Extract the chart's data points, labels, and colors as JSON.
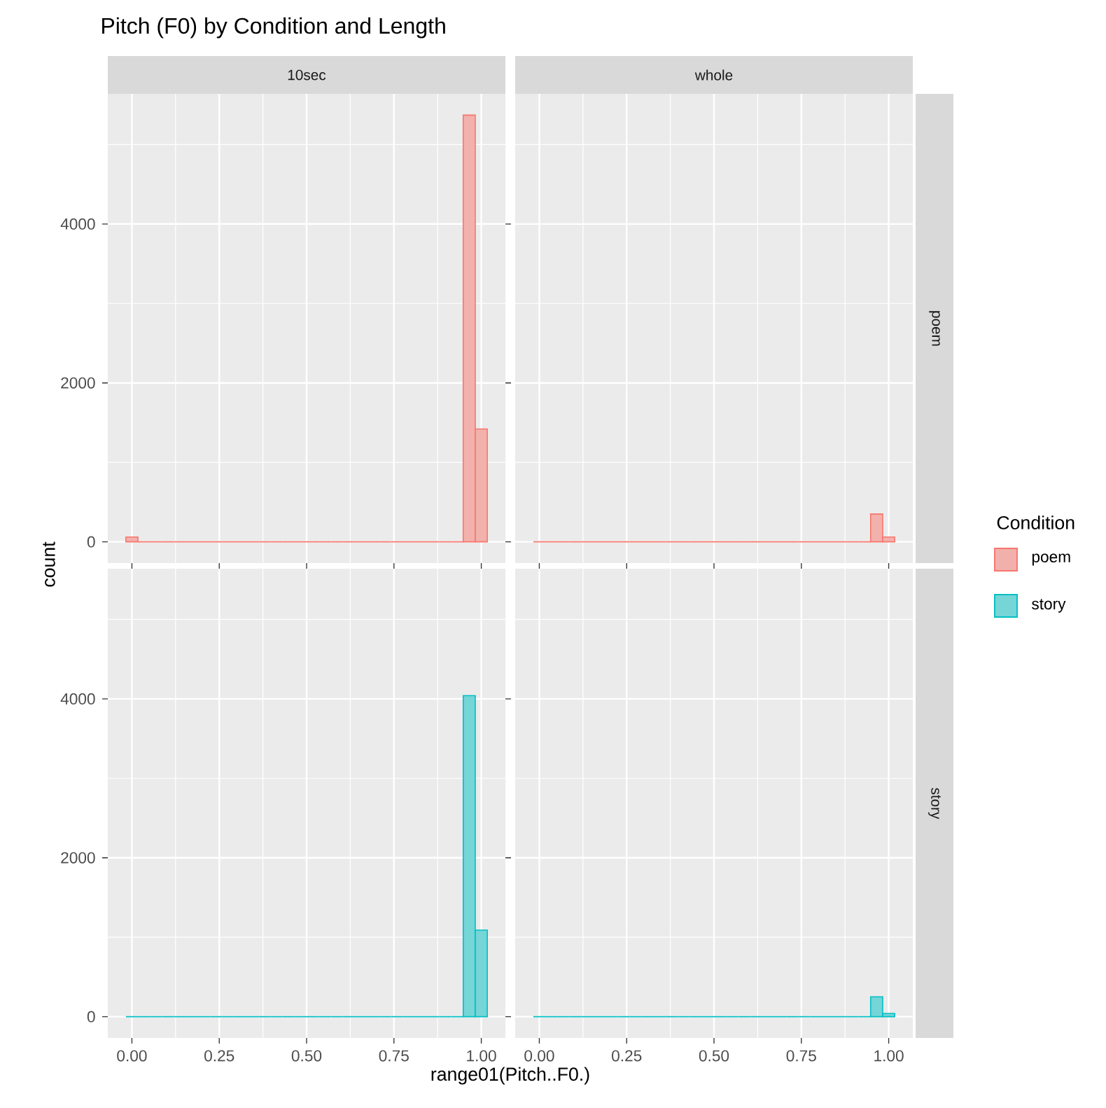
{
  "chart_data": [
    {
      "type": "histogram",
      "title": "Pitch (F0) by Condition and Length",
      "subtitle": "10sec",
      "ylabel": "count",
      "legend_title": "Condition",
      "legend": "right",
      "grid": true,
      "tick_labels": "y",
      "bins": [
        -0.0172,
        0.0172,
        0.0517,
        0.0862,
        0.1207,
        0.1552,
        0.1897,
        0.2241,
        0.2586,
        0.2931,
        0.3276,
        0.3621,
        0.3966,
        0.431,
        0.4655,
        0.5,
        0.5345,
        0.569,
        0.6034,
        0.6379,
        0.6724,
        0.7069,
        0.7414,
        0.7759,
        0.8103,
        0.8448,
        0.8793,
        0.9138,
        0.9483,
        0.9828,
        1.0172
      ],
      "series": [
        {
          "name": "poem",
          "color": "#f8766d",
          "values": [
            60,
            0,
            0,
            0,
            0,
            0,
            0,
            0,
            0,
            0,
            0,
            0,
            0,
            0,
            0,
            0,
            0,
            0,
            0,
            0,
            0,
            0,
            0,
            0,
            0,
            0,
            0,
            0,
            5370,
            1420
          ]
        }
      ],
      "xlim": [
        -0.069,
        1.069
      ],
      "xticks": [
        0,
        0.25,
        0.5,
        0.75,
        1
      ],
      "ylim": [
        -268,
        5638
      ],
      "yticks": [
        0,
        2000,
        4000
      ]
    },
    {
      "type": "histogram",
      "subtitle": "whole",
      "y2label": "poem",
      "grid": true,
      "tick_labels": false,
      "bins": [
        -0.0172,
        0.0172,
        0.0517,
        0.0862,
        0.1207,
        0.1552,
        0.1897,
        0.2241,
        0.2586,
        0.2931,
        0.3276,
        0.3621,
        0.3966,
        0.431,
        0.4655,
        0.5,
        0.5345,
        0.569,
        0.6034,
        0.6379,
        0.6724,
        0.7069,
        0.7414,
        0.7759,
        0.8103,
        0.8448,
        0.8793,
        0.9138,
        0.9483,
        0.9828,
        1.0172
      ],
      "series": [
        {
          "color": "#f8766d",
          "values": [
            0,
            0,
            0,
            0,
            0,
            0,
            0,
            0,
            0,
            0,
            0,
            0,
            0,
            0,
            0,
            0,
            0,
            0,
            0,
            0,
            0,
            0,
            0,
            0,
            0,
            0,
            0,
            0,
            350,
            60
          ]
        }
      ],
      "xlim": [
        -0.069,
        1.069
      ],
      "xticks": [
        0,
        0.25,
        0.5,
        0.75,
        1
      ],
      "ylim": [
        -268,
        5638
      ],
      "yticks": [
        0,
        2000,
        4000
      ]
    },
    {
      "type": "histogram",
      "xlabel": "range01(Pitch..F0.)",
      "legend": "right",
      "grid": true,
      "bins": [
        -0.0172,
        0.0172,
        0.0517,
        0.0862,
        0.1207,
        0.1552,
        0.1897,
        0.2241,
        0.2586,
        0.2931,
        0.3276,
        0.3621,
        0.3966,
        0.431,
        0.4655,
        0.5,
        0.5345,
        0.569,
        0.6034,
        0.6379,
        0.6724,
        0.7069,
        0.7414,
        0.7759,
        0.8103,
        0.8448,
        0.8793,
        0.9138,
        0.9483,
        0.9828,
        1.0172
      ],
      "series": [
        {
          "name": "story",
          "color": "#00bfc4",
          "values": [
            0,
            0,
            0,
            0,
            0,
            0,
            0,
            0,
            0,
            0,
            0,
            0,
            0,
            0,
            0,
            0,
            0,
            0,
            0,
            0,
            0,
            0,
            0,
            0,
            0,
            0,
            0,
            0,
            4040,
            1090
          ]
        }
      ],
      "xlim": [
        -0.069,
        1.069
      ],
      "xticks": [
        {
          "value": 0,
          "label": "0.00"
        },
        {
          "value": 0.25,
          "label": "0.25"
        },
        {
          "value": 0.5,
          "label": "0.50"
        },
        {
          "value": 0.75,
          "label": "0.75"
        },
        {
          "value": 1,
          "label": "1.00"
        }
      ],
      "ylim": [
        -268,
        5638
      ],
      "yticks": [
        0,
        2000,
        4000
      ]
    },
    {
      "type": "histogram",
      "y2label": "story",
      "grid": true,
      "tick_labels": "x",
      "bins": [
        -0.0172,
        0.0172,
        0.0517,
        0.0862,
        0.1207,
        0.1552,
        0.1897,
        0.2241,
        0.2586,
        0.2931,
        0.3276,
        0.3621,
        0.3966,
        0.431,
        0.4655,
        0.5,
        0.5345,
        0.569,
        0.6034,
        0.6379,
        0.6724,
        0.7069,
        0.7414,
        0.7759,
        0.8103,
        0.8448,
        0.8793,
        0.9138,
        0.9483,
        0.9828,
        1.0172
      ],
      "series": [
        {
          "color": "#00bfc4",
          "values": [
            0,
            0,
            0,
            0,
            0,
            0,
            0,
            0,
            0,
            0,
            0,
            0,
            0,
            0,
            0,
            0,
            0,
            0,
            0,
            0,
            0,
            0,
            0,
            0,
            0,
            0,
            0,
            0,
            250,
            40
          ]
        }
      ],
      "xlim": [
        -0.069,
        1.069
      ],
      "xticks": [
        {
          "value": 0,
          "label": "0.00"
        },
        {
          "value": 0.25,
          "label": "0.25"
        },
        {
          "value": 0.5,
          "label": "0.50"
        },
        {
          "value": 0.75,
          "label": "0.75"
        },
        {
          "value": 1,
          "label": "1.00"
        }
      ],
      "ylim": [
        -268,
        5638
      ],
      "yticks": [
        0,
        2000,
        4000
      ]
    }
  ]
}
